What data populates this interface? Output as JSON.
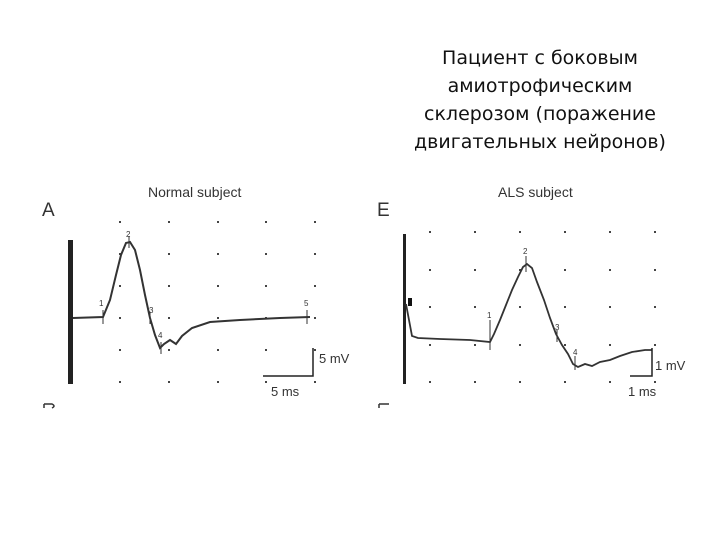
{
  "caption": {
    "lines": [
      "Пациент с боковым",
      "амиотрофическим",
      "склерозом (поражение",
      "двигательных нейронов)"
    ]
  },
  "panel_a": {
    "letter": "A",
    "title": "Normal subject",
    "voltage_scale": "5 mV",
    "time_scale": "5 ms",
    "point_labels": [
      "1",
      "2",
      "3",
      "4",
      "5"
    ]
  },
  "panel_e": {
    "letter": "E",
    "title": "ALS subject",
    "voltage_scale": "1 mV",
    "time_scale": "1 ms",
    "point_labels": [
      "1",
      "2",
      "3",
      "4"
    ]
  },
  "colors": {
    "trace": "#333333",
    "grid_dot": "#444444",
    "text": "#111111"
  }
}
